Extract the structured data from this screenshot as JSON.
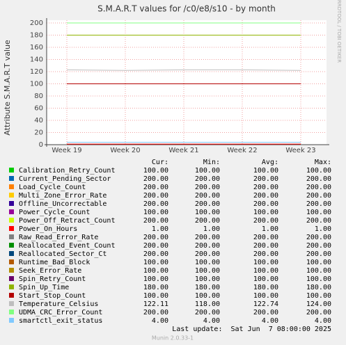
{
  "chart_data": {
    "type": "line",
    "title": "S.M.A.R.T values for /c0/e8/s10 - by month",
    "y_label": "Attribute S.M.A.R.T value",
    "side_label": "RRDTOOL / TOBI OETIKER",
    "categories": [
      "Week 19",
      "Week 20",
      "Week 21",
      "Week 22",
      "Week 23"
    ],
    "ylim": [
      0,
      200
    ],
    "yticks": [
      0,
      20,
      40,
      60,
      80,
      100,
      120,
      140,
      160,
      180,
      200
    ],
    "grid": true,
    "columns": [
      "Cur:",
      "Min:",
      "Avg:",
      "Max:"
    ],
    "series": [
      {
        "name": "Calibration_Retry_Count",
        "color": "#00cc00",
        "values": [
          100,
          100,
          100,
          100,
          100
        ],
        "stats": [
          "100.00",
          "100.00",
          "100.00",
          "100.00"
        ]
      },
      {
        "name": "Current_Pending_Sector",
        "color": "#0066b3",
        "values": [
          200,
          200,
          200,
          200,
          200
        ],
        "stats": [
          "200.00",
          "200.00",
          "200.00",
          "200.00"
        ]
      },
      {
        "name": "Load_Cycle_Count",
        "color": "#ff8000",
        "values": [
          200,
          200,
          200,
          200,
          200
        ],
        "stats": [
          "200.00",
          "200.00",
          "200.00",
          "200.00"
        ]
      },
      {
        "name": "Multi_Zone_Error_Rate",
        "color": "#ffcc00",
        "values": [
          200,
          200,
          200,
          200,
          200
        ],
        "stats": [
          "200.00",
          "200.00",
          "200.00",
          "200.00"
        ]
      },
      {
        "name": "Offline_Uncorrectable",
        "color": "#330099",
        "values": [
          200,
          200,
          200,
          200,
          200
        ],
        "stats": [
          "200.00",
          "200.00",
          "200.00",
          "200.00"
        ]
      },
      {
        "name": "Power_Cycle_Count",
        "color": "#990099",
        "values": [
          100,
          100,
          100,
          100,
          100
        ],
        "stats": [
          "100.00",
          "100.00",
          "100.00",
          "100.00"
        ]
      },
      {
        "name": "Power_Off_Retract_Count",
        "color": "#ccff00",
        "values": [
          200,
          200,
          200,
          200,
          200
        ],
        "stats": [
          "200.00",
          "200.00",
          "200.00",
          "200.00"
        ]
      },
      {
        "name": "Power_On_Hours",
        "color": "#ff0000",
        "values": [
          1,
          1,
          1,
          1,
          1
        ],
        "stats": [
          "1.00",
          "1.00",
          "1.00",
          "1.00"
        ]
      },
      {
        "name": "Raw_Read_Error_Rate",
        "color": "#808080",
        "values": [
          200,
          200,
          200,
          200,
          200
        ],
        "stats": [
          "200.00",
          "200.00",
          "200.00",
          "200.00"
        ]
      },
      {
        "name": "Reallocated_Event_Count",
        "color": "#008f00",
        "values": [
          200,
          200,
          200,
          200,
          200
        ],
        "stats": [
          "200.00",
          "200.00",
          "200.00",
          "200.00"
        ]
      },
      {
        "name": "Reallocated_Sector_Ct",
        "color": "#00487d",
        "values": [
          200,
          200,
          200,
          200,
          200
        ],
        "stats": [
          "200.00",
          "200.00",
          "200.00",
          "200.00"
        ]
      },
      {
        "name": "Runtime_Bad_Block",
        "color": "#b35a00",
        "values": [
          100,
          100,
          100,
          100,
          100
        ],
        "stats": [
          "100.00",
          "100.00",
          "100.00",
          "100.00"
        ]
      },
      {
        "name": "Seek_Error_Rate",
        "color": "#b38f00",
        "values": [
          100,
          100,
          100,
          100,
          100
        ],
        "stats": [
          "100.00",
          "100.00",
          "100.00",
          "100.00"
        ]
      },
      {
        "name": "Spin_Retry_Count",
        "color": "#6b006b",
        "values": [
          100,
          100,
          100,
          100,
          100
        ],
        "stats": [
          "100.00",
          "100.00",
          "100.00",
          "100.00"
        ]
      },
      {
        "name": "Spin_Up_Time",
        "color": "#8fb300",
        "values": [
          180,
          180,
          180,
          180,
          180
        ],
        "stats": [
          "180.00",
          "180.00",
          "180.00",
          "180.00"
        ]
      },
      {
        "name": "Start_Stop_Count",
        "color": "#b30000",
        "values": [
          100,
          100,
          100,
          100,
          100
        ],
        "stats": [
          "100.00",
          "100.00",
          "100.00",
          "100.00"
        ]
      },
      {
        "name": "Temperature_Celsius",
        "color": "#bebebe",
        "values": [
          123,
          122,
          123,
          123,
          122
        ],
        "stats": [
          "122.11",
          "118.00",
          "122.74",
          "124.00"
        ]
      },
      {
        "name": "UDMA_CRC_Error_Count",
        "color": "#80ff80",
        "values": [
          200,
          200,
          200,
          200,
          200
        ],
        "stats": [
          "200.00",
          "200.00",
          "200.00",
          "200.00"
        ]
      },
      {
        "name": "smartctl_exit_status",
        "color": "#80c9ff",
        "values": [
          4,
          4,
          4,
          4,
          4
        ],
        "stats": [
          "4.00",
          "4.00",
          "4.00",
          "4.00"
        ]
      }
    ],
    "last_update": "Last update:  Sat Jun  7 08:00:00 2025",
    "footer": "Munin 2.0.33-1"
  }
}
